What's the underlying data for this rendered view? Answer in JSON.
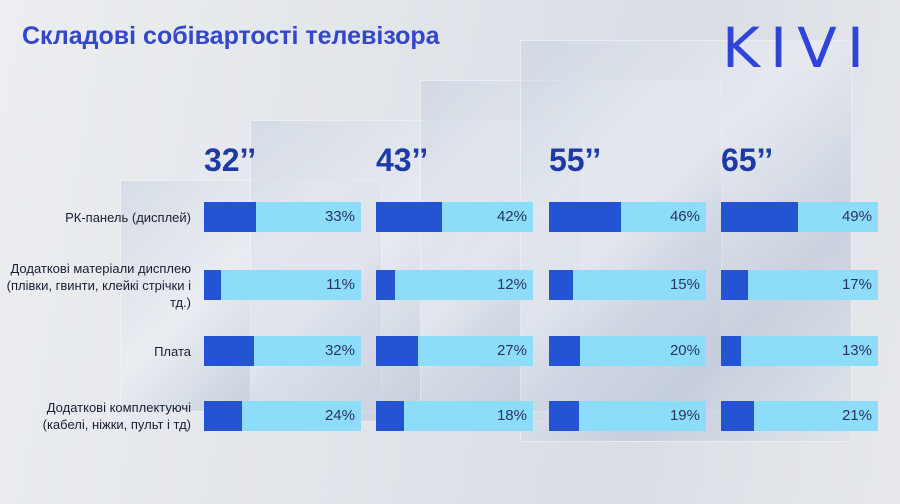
{
  "chart_data": {
    "type": "bar",
    "title": "Складові собівартості телевізора",
    "brand": "KIVI",
    "categories": [
      "РК-панель (дисплей)",
      "Додаткові матеріали дисплею (плівки, гвинти, клейкі стрічки і тд.)",
      "Плата",
      "Додаткові комплектуючі (кабелі, ніжки, пульт і тд)"
    ],
    "series": [
      {
        "name": "32’’",
        "color": "#2453d4",
        "values": [
          33,
          11,
          32,
          24
        ],
        "value_labels": [
          "33%",
          "11%",
          "32%",
          "24%"
        ]
      },
      {
        "name": "43’’",
        "color": "#2453d4",
        "values": [
          42,
          12,
          27,
          18
        ],
        "value_labels": [
          "42%",
          "12%",
          "27%",
          "18%"
        ]
      },
      {
        "name": "55’’",
        "color": "#2453d4",
        "values": [
          46,
          15,
          20,
          19
        ],
        "value_labels": [
          "46%",
          "15%",
          "20%",
          "19%"
        ]
      },
      {
        "name": "65’’",
        "color": "#2453d4",
        "values": [
          49,
          17,
          13,
          21
        ],
        "value_labels": [
          "49%",
          "17%",
          "13%",
          "21%"
        ]
      }
    ],
    "track_color": "#8ddcfa",
    "xlim": [
      0,
      100
    ]
  }
}
